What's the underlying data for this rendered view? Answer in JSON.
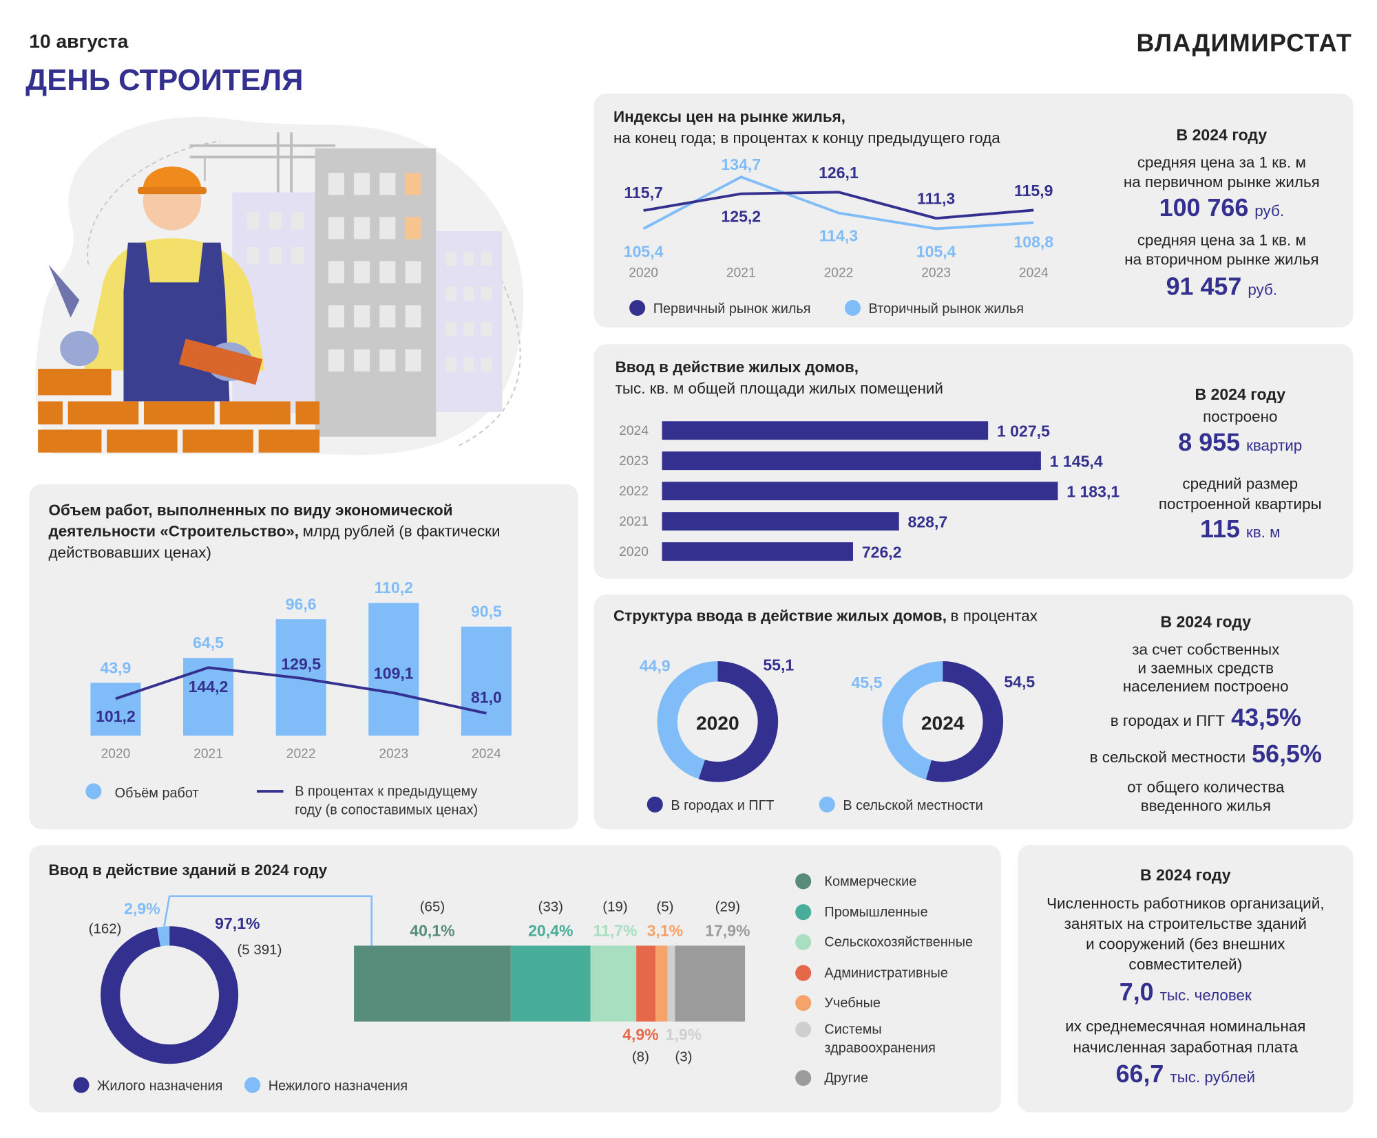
{
  "header": {
    "date": "10 августа",
    "title": "ДЕНЬ СТРОИТЕЛЯ",
    "brand": "ВЛАДИМИРСТАТ"
  },
  "chart_data": [
    {
      "type": "line",
      "title": "Индексы цен на рынке жилья,",
      "subtitle": "на конец года; в процентах к концу предыдущего года",
      "categories": [
        "2020",
        "2021",
        "2022",
        "2023",
        "2024"
      ],
      "series": [
        {
          "name": "Первичный рынок жилья",
          "color": "#33308f",
          "values": [
            115.7,
            125.2,
            126.1,
            111.3,
            115.9
          ],
          "value_labels": [
            "115,7",
            "125,2",
            "126,1",
            "111,3",
            "115,9"
          ]
        },
        {
          "name": "Вторичный рынок жилья",
          "color": "#80bcf8",
          "values": [
            105.4,
            134.7,
            114.3,
            105.4,
            108.8
          ],
          "value_labels": [
            "105,4",
            "134,7",
            "114,3",
            "105,4",
            "108,8"
          ]
        }
      ],
      "ylim": [
        95,
        145
      ]
    },
    {
      "type": "bar",
      "orientation": "horizontal",
      "title": "Ввод в действие жилых домов,",
      "subtitle": "тыс. кв. м общей площади жилых помещений",
      "categories": [
        "2024",
        "2023",
        "2022",
        "2021",
        "2020"
      ],
      "values": [
        1027.5,
        1145.4,
        1183.1,
        828.7,
        726.2
      ],
      "value_labels": [
        "1 027,5",
        "1 145,4",
        "1 183,1",
        "828,7",
        "726,2"
      ],
      "color": "#33308f",
      "xlim": [
        300,
        1200
      ]
    },
    {
      "type": "bar",
      "title": "Объем работ, выполненных по виду экономической деятельности «Строительство»,",
      "subtitle": "млрд рублей (в фактически действовавших ценах)",
      "categories": [
        "2020",
        "2021",
        "2022",
        "2023",
        "2024"
      ],
      "series": [
        {
          "name": "Объём работ",
          "color": "#80bcf8",
          "values": [
            43.9,
            64.5,
            96.6,
            110.2,
            90.5
          ],
          "value_labels": [
            "43,9",
            "64,5",
            "96,6",
            "110,2",
            "90,5"
          ]
        },
        {
          "name": "В процентах к предыдущему году (в сопоставимых ценах)",
          "type": "line",
          "axis": "y2",
          "color": "#33308f",
          "values": [
            101.2,
            144.2,
            129.5,
            109.1,
            81.0
          ],
          "value_labels": [
            "101,2",
            "144,2",
            "129,5",
            "109,1",
            "81,0"
          ]
        }
      ],
      "ylim": [
        0,
        120
      ],
      "y2lim": [
        50,
        250
      ]
    },
    {
      "type": "pie",
      "donut": true,
      "title": "Структура ввода в действие жилых домов,",
      "subtitle": "в процентах",
      "categories": [
        "В городах и ПГТ",
        "В сельской местности"
      ],
      "colors": [
        "#33308f",
        "#80bcf8"
      ],
      "series": [
        {
          "name": "2020",
          "values": [
            55.1,
            44.9
          ],
          "value_labels": [
            "55,1",
            "44,9"
          ]
        },
        {
          "name": "2024",
          "values": [
            54.5,
            45.5
          ],
          "value_labels": [
            "54,5",
            "45,5"
          ]
        }
      ]
    },
    {
      "type": "pie",
      "donut": true,
      "title": "Ввод в действие зданий в 2024 году",
      "categories": [
        "Жилого назначения",
        "Нежилого назначения"
      ],
      "colors": [
        "#33308f",
        "#80bcf8"
      ],
      "values": [
        97.1,
        2.9
      ],
      "value_labels": [
        "97,1%",
        "2,9%"
      ],
      "counts": [
        5391,
        162
      ],
      "count_labels": [
        "(5 391)",
        "(162)"
      ]
    },
    {
      "type": "bar",
      "stacked": true,
      "orientation": "horizontal",
      "xlim": [
        0,
        100
      ],
      "series": [
        {
          "name": "Коммерческие",
          "color": "#578c7a",
          "values": [
            40.1
          ],
          "value_labels": [
            "40,1%"
          ],
          "counts": [
            65
          ],
          "count_labels": [
            "(65)"
          ]
        },
        {
          "name": "Промышленные",
          "color": "#48ad99",
          "values": [
            20.4
          ],
          "value_labels": [
            "20,4%"
          ],
          "counts": [
            33
          ],
          "count_labels": [
            "(33)"
          ]
        },
        {
          "name": "Сельскохозяйственные",
          "color": "#a7dfc0",
          "values": [
            11.7
          ],
          "value_labels": [
            "11,7%"
          ],
          "counts": [
            19
          ],
          "count_labels": [
            "(19)"
          ]
        },
        {
          "name": "Административные",
          "color": "#e5684a",
          "values": [
            4.9
          ],
          "value_labels": [
            "4,9%"
          ],
          "counts": [
            8
          ],
          "count_labels": [
            "(8)"
          ]
        },
        {
          "name": "Учебные",
          "color": "#f6a26b",
          "values": [
            3.1
          ],
          "value_labels": [
            "3,1%"
          ],
          "counts": [
            5
          ],
          "count_labels": [
            "(5)"
          ]
        },
        {
          "name": "Системы здравоохранения",
          "color": "#cfcfcf",
          "values": [
            1.9
          ],
          "value_labels": [
            "1,9%"
          ],
          "counts": [
            3
          ],
          "count_labels": [
            "(3)"
          ]
        },
        {
          "name": "Другие",
          "color": "#9b9b9b",
          "values": [
            17.9
          ],
          "value_labels": [
            "17,9%"
          ],
          "counts": [
            29
          ],
          "count_labels": [
            "(29)"
          ]
        }
      ]
    }
  ],
  "price_summary": {
    "heading": "В 2024 году",
    "primary_caption": [
      "средняя цена за 1 кв. м",
      "на первичном рынке жилья"
    ],
    "primary_price": "100 766",
    "primary_unit": "руб.",
    "secondary_caption": [
      "средняя цена за 1 кв. м",
      "на вторичном рынке жилья"
    ],
    "secondary_price": "91 457",
    "secondary_unit": "руб."
  },
  "housing_summary": {
    "heading": "В 2024 году",
    "built_caption": "построено",
    "flats": "8 955",
    "flats_unit": "квартир",
    "size_caption": [
      "средний размер",
      "построенной квартиры"
    ],
    "size": "115",
    "size_unit": "кв. м"
  },
  "structure_summary": {
    "heading": "В 2024 году",
    "caption": [
      "за счет собственных",
      "и заемных средств",
      "населением построено"
    ],
    "urban_caption": "в городах и ПГТ",
    "urban_share": "43,5%",
    "rural_caption": "в сельской местности",
    "rural_share": "56,5%",
    "footer": [
      "от общего количества",
      "введенного жилья"
    ]
  },
  "workers_summary": {
    "heading": "В 2024 году",
    "caption": [
      "Численность работников организаций,",
      "занятых на строительстве зданий",
      "и сооружений (без внешних",
      "совместителей)"
    ],
    "workers": "7,0",
    "workers_unit": "тыс. человек",
    "wage_caption": [
      "их среднемесячная номинальная",
      "начисленная заработная плата"
    ],
    "wage": "66,7",
    "wage_unit": "тыс. рублей"
  }
}
